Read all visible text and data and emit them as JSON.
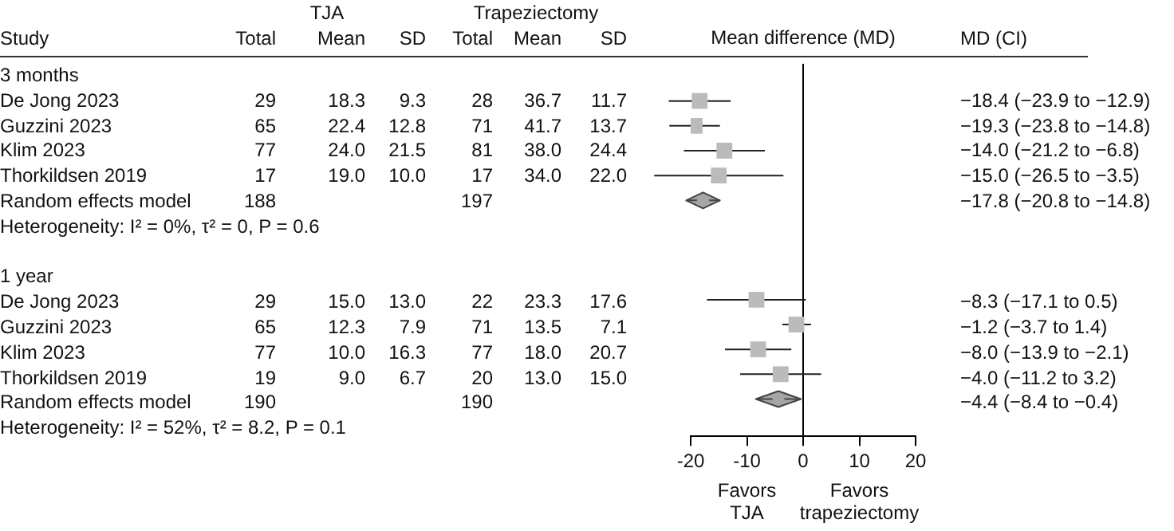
{
  "chart_data": [
    {
      "type": "other",
      "ylabel": "Study",
      "annotations": [
        "TJA",
        "Trapeziectomy"
      ],
      "categories": [
        "3 months",
        "De Jong 2023",
        "Guzzini 2023",
        "Klim 2023",
        "Thorkildsen 2019",
        "Random effects model",
        "Heterogeneity: I² = 0%, τ² = 0, P = 0.6",
        null,
        "1 year",
        "De Jong 2023",
        "Guzzini 2023",
        "Klim 2023",
        "Thorkildsen 2019",
        "Random effects model",
        "Heterogeneity: I² = 52%, τ² = 8.2, P = 0.1"
      ],
      "series": [
        {
          "name": "Total",
          "values": [
            null,
            29,
            65,
            77,
            17,
            188,
            null,
            null,
            null,
            29,
            65,
            77,
            19,
            190,
            null
          ],
          "value_labels": [
            null,
            "29",
            "65",
            "77",
            "17",
            "188",
            null,
            null,
            null,
            "29",
            "65",
            "77",
            "19",
            "190",
            null
          ]
        },
        {
          "name": "Mean",
          "values": [
            null,
            18.3,
            22.4,
            24.0,
            19.0,
            null,
            null,
            null,
            null,
            15.0,
            12.3,
            10.0,
            9.0,
            null,
            null
          ],
          "value_labels": [
            null,
            "18.3",
            "22.4",
            "24.0",
            "19.0",
            null,
            null,
            null,
            null,
            "15.0",
            "12.3",
            "10.0",
            "9.0",
            null,
            null
          ]
        },
        {
          "name": "SD",
          "values": [
            null,
            9.3,
            12.8,
            21.5,
            10.0,
            null,
            null,
            null,
            null,
            13.0,
            7.9,
            16.3,
            6.7,
            null,
            null
          ],
          "value_labels": [
            null,
            "9.3",
            "12.8",
            "21.5",
            "10.0",
            null,
            null,
            null,
            null,
            "13.0",
            "7.9",
            "16.3",
            "6.7",
            null,
            null
          ]
        },
        {
          "name": "Total",
          "values": [
            null,
            28,
            71,
            81,
            17,
            197,
            null,
            null,
            null,
            22,
            71,
            77,
            20,
            190,
            null
          ],
          "value_labels": [
            null,
            "28",
            "71",
            "81",
            "17",
            "197",
            null,
            null,
            null,
            "22",
            "71",
            "77",
            "20",
            "190",
            null
          ]
        },
        {
          "name": "Mean",
          "values": [
            null,
            36.7,
            41.7,
            38.0,
            34.0,
            null,
            null,
            null,
            null,
            23.3,
            13.5,
            18.0,
            13.0,
            null,
            null
          ],
          "value_labels": [
            null,
            "36.7",
            "41.7",
            "38.0",
            "34.0",
            null,
            null,
            null,
            null,
            "23.3",
            "13.5",
            "18.0",
            "13.0",
            null,
            null
          ]
        },
        {
          "name": "SD",
          "values": [
            null,
            11.7,
            13.7,
            24.4,
            22.0,
            null,
            null,
            null,
            null,
            17.6,
            7.1,
            20.7,
            15.0,
            null,
            null
          ],
          "value_labels": [
            null,
            "11.7",
            "13.7",
            "24.4",
            "22.0",
            null,
            null,
            null,
            null,
            "17.6",
            "7.1",
            "20.7",
            "15.0",
            null,
            null
          ]
        }
      ]
    },
    {
      "type": "scatter",
      "orientation": "horizontal",
      "title": "Mean difference (MD)",
      "annotations": [
        "Favors TJA",
        "Favors trapeziectomy"
      ],
      "categories": [
        null,
        null,
        null,
        null,
        null,
        null,
        null,
        null,
        null,
        null,
        null,
        null,
        null,
        null,
        null
      ],
      "xlim": [
        -20,
        20
      ],
      "xticks": [
        -20,
        -10,
        0,
        10,
        20
      ],
      "ref_lines": [
        {
          "axis": "x",
          "value": 0
        }
      ],
      "series": [
        {
          "color": "#bbbbbb",
          "marker": "square",
          "values": [
            null,
            -18.4,
            -19.3,
            -14.0,
            -15.0,
            null,
            null,
            null,
            null,
            -8.3,
            -1.2,
            -8.0,
            -4.0,
            null,
            null
          ],
          "errors": [
            null,
            [
              -23.9,
              -12.9
            ],
            [
              -23.8,
              -14.8
            ],
            [
              -21.2,
              -6.8
            ],
            [
              -26.5,
              -3.5
            ],
            null,
            null,
            null,
            null,
            [
              -17.1,
              0.5
            ],
            [
              -3.7,
              1.4
            ],
            [
              -13.9,
              -2.1
            ],
            [
              -11.2,
              3.2
            ],
            null,
            null
          ]
        },
        {
          "color": "#a6a6a6",
          "marker": "diamond",
          "values": [
            null,
            null,
            null,
            null,
            null,
            -17.8,
            null,
            null,
            null,
            null,
            null,
            null,
            null,
            -4.4,
            null
          ],
          "errors": [
            null,
            null,
            null,
            null,
            null,
            [
              -20.8,
              -14.8
            ],
            null,
            null,
            null,
            null,
            null,
            null,
            null,
            [
              -8.4,
              -0.4
            ],
            null
          ]
        }
      ]
    },
    {
      "type": "other",
      "categories": [
        null,
        null,
        null,
        null,
        null,
        null,
        null,
        null,
        null,
        null,
        null,
        null,
        null,
        null,
        null
      ],
      "series": [
        {
          "name": "MD (CI)",
          "values": [
            null,
            -18.4,
            -19.3,
            -14.0,
            -15.0,
            -17.8,
            null,
            null,
            null,
            -8.3,
            -1.2,
            -8.0,
            -4.0,
            -4.4,
            null
          ],
          "value_labels": [
            null,
            "−18.4 (−23.9 to −12.9)",
            "−19.3 (−23.8 to −14.8)",
            "−14.0 (−21.2 to −6.8)",
            "−15.0 (−26.5 to −3.5)",
            "−17.8 (−20.8 to −14.8)",
            null,
            null,
            null,
            "−8.3 (−17.1 to 0.5)",
            "−1.2 (−3.7 to 1.4)",
            "−8.0 (−13.9 to −2.1)",
            "−4.0 (−11.2 to 3.2)",
            "−4.4 (−8.4 to −0.4)",
            null
          ]
        }
      ]
    }
  ]
}
